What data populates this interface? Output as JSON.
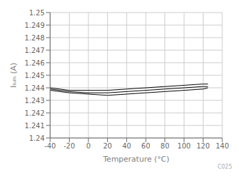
{
  "chart_data": {
    "type": "line",
    "xlabel": "Temperature (°C)",
    "ylabel": "Iₗᵤₘ (A)",
    "x": [
      -40,
      -20,
      0,
      20,
      40,
      60,
      80,
      100,
      120,
      125
    ],
    "series": [
      {
        "color": "#000000",
        "values": [
          1.2439,
          1.2437,
          1.2436,
          1.2436,
          1.2437,
          1.2438,
          1.2439,
          1.244,
          1.2441,
          1.2441
        ]
      },
      {
        "color": "#000000",
        "values": [
          1.244,
          1.2438,
          1.2438,
          1.2438,
          1.2439,
          1.244,
          1.2441,
          1.2442,
          1.2443,
          1.2443
        ]
      },
      {
        "color": "#000000",
        "values": [
          1.2438,
          1.2436,
          1.2435,
          1.2434,
          1.2435,
          1.2436,
          1.2437,
          1.2438,
          1.2439,
          1.244
        ]
      }
    ],
    "xlim": [
      -40,
      140
    ],
    "ylim": [
      1.24,
      1.25
    ],
    "xticks": [
      -40,
      -20,
      0,
      20,
      40,
      60,
      80,
      100,
      120,
      140
    ],
    "yticks": [
      1.24,
      1.241,
      1.242,
      1.243,
      1.244,
      1.245,
      1.246,
      1.247,
      1.248,
      1.249,
      1.25
    ],
    "grid": true,
    "annotations": [
      "C025"
    ]
  }
}
